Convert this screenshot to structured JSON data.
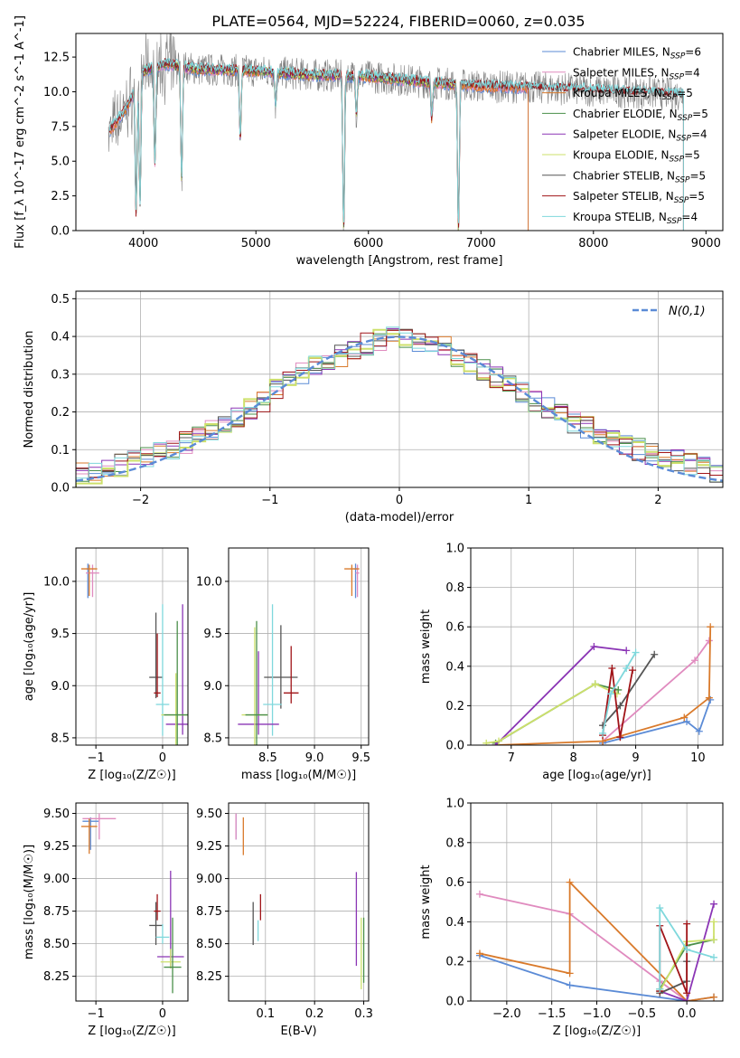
{
  "figure_title": "PLATE=0564, MJD=52224, FIBERID=0060, z=0.035",
  "colors": {
    "chabrier_miles": "#5b8bd6",
    "salpeter_miles": "#e08bbf",
    "kroupa_miles": "#d97a2b",
    "chabrier_elodie": "#4a8f4a",
    "salpeter_elodie": "#8b35b5",
    "kroupa_elodie": "#cde06b",
    "chabrier_stelib": "#555555",
    "salpeter_stelib": "#a01418",
    "kroupa_stelib": "#7fd8dc",
    "data": "#808080",
    "normal": "#5b8bd6",
    "grid": "#b0b0b0"
  },
  "chart_data": [
    {
      "id": "spectrum",
      "type": "line",
      "title": "PLATE=0564, MJD=52224, FIBERID=0060, z=0.035",
      "xlabel": "wavelength [Angstrom, rest frame]",
      "ylabel": "Flux [f_λ 10^-17 erg cm^-2 s^-1 A^-1]",
      "xlim": [
        3400,
        9150
      ],
      "ylim": [
        0,
        14.2
      ],
      "xticks": [
        4000,
        5000,
        6000,
        7000,
        8000,
        9000
      ],
      "yticks": [
        0.0,
        2.5,
        5.0,
        7.5,
        10.0,
        12.5
      ],
      "grid": false,
      "legend_position": "top-right",
      "legend": [
        {
          "base": "Chabrier MILES, N",
          "n": "6",
          "key": "chabrier_miles"
        },
        {
          "base": "Salpeter MILES, N",
          "n": "4",
          "key": "salpeter_miles"
        },
        {
          "base": "Kroupa MILES, N",
          "n": "5",
          "key": "kroupa_miles"
        },
        {
          "base": "Chabrier ELODIE, N",
          "n": "5",
          "key": "chabrier_elodie"
        },
        {
          "base": "Salpeter ELODIE, N",
          "n": "4",
          "key": "salpeter_elodie"
        },
        {
          "base": "Kroupa ELODIE, N",
          "n": "5",
          "key": "kroupa_elodie"
        },
        {
          "base": "Chabrier STELIB, N",
          "n": "5",
          "key": "chabrier_stelib"
        },
        {
          "base": "Salpeter STELIB, N",
          "n": "5",
          "key": "salpeter_stelib"
        },
        {
          "base": "Kroupa STELIB, N",
          "n": "4",
          "key": "kroupa_stelib"
        }
      ],
      "legend_subscript": "SSP",
      "continuum": {
        "x": [
          3700,
          3850,
          4000,
          4200,
          4500,
          5000,
          5500,
          6000,
          6500,
          7000,
          7500,
          8000,
          8500,
          8800
        ],
        "y": [
          7.2,
          8.8,
          11.5,
          12.0,
          11.6,
          11.5,
          11.2,
          11.1,
          10.7,
          10.4,
          10.3,
          10.1,
          9.9,
          9.8
        ]
      },
      "model_ranges": {
        "chabrier_miles": [
          3700,
          7420
        ],
        "salpeter_miles": [
          3700,
          7420
        ],
        "kroupa_miles": [
          3700,
          7420
        ],
        "chabrier_elodie": [
          3900,
          6800
        ],
        "salpeter_elodie": [
          3900,
          6800
        ],
        "kroupa_elodie": [
          3900,
          6800
        ],
        "chabrier_stelib": [
          3700,
          8800
        ],
        "salpeter_stelib": [
          3700,
          8800
        ],
        "kroupa_stelib": [
          3700,
          8800
        ]
      },
      "dips": [
        {
          "x": 3935,
          "y": 1.2
        },
        {
          "x": 3970,
          "y": 2.0
        },
        {
          "x": 4102,
          "y": 4.8
        },
        {
          "x": 4340,
          "y": 3.6
        },
        {
          "x": 4861,
          "y": 6.6
        },
        {
          "x": 5175,
          "y": 9.0
        },
        {
          "x": 5780,
          "y": 0.0
        },
        {
          "x": 5893,
          "y": 8.3
        },
        {
          "x": 6563,
          "y": 8.0
        },
        {
          "x": 6800,
          "y": 0.0
        }
      ]
    },
    {
      "id": "residuals",
      "type": "bar",
      "xlabel": "(data-model)/error",
      "ylabel": "Normed distribution",
      "xlim": [
        -2.5,
        2.5
      ],
      "ylim": [
        0,
        0.52
      ],
      "xticks": [
        -2,
        -1,
        0,
        1,
        2
      ],
      "yticks": [
        0.0,
        0.1,
        0.2,
        0.3,
        0.4,
        0.5
      ],
      "grid": true,
      "legend_position": "top-right",
      "legend_label": "N(0,1)",
      "bin_width": 0.1,
      "hist_centers": [
        -2.45,
        -2.35,
        -2.25,
        -2.15,
        -2.05,
        -1.95,
        -1.85,
        -1.75,
        -1.65,
        -1.55,
        -1.45,
        -1.35,
        -1.25,
        -1.15,
        -1.05,
        -0.95,
        -0.85,
        -0.75,
        -0.65,
        -0.55,
        -0.45,
        -0.35,
        -0.25,
        -0.15,
        -0.05,
        0.05,
        0.15,
        0.25,
        0.35,
        0.45,
        0.55,
        0.65,
        0.75,
        0.85,
        0.95,
        1.05,
        1.15,
        1.25,
        1.35,
        1.45,
        1.55,
        1.65,
        1.75,
        1.85,
        1.95,
        2.05,
        2.15,
        2.25,
        2.35,
        2.45
      ],
      "hist_values": [
        0.04,
        0.04,
        0.05,
        0.06,
        0.07,
        0.08,
        0.09,
        0.1,
        0.12,
        0.14,
        0.15,
        0.17,
        0.19,
        0.21,
        0.23,
        0.26,
        0.28,
        0.3,
        0.32,
        0.33,
        0.35,
        0.37,
        0.38,
        0.39,
        0.4,
        0.4,
        0.39,
        0.38,
        0.37,
        0.35,
        0.33,
        0.31,
        0.29,
        0.27,
        0.25,
        0.23,
        0.21,
        0.19,
        0.17,
        0.16,
        0.14,
        0.13,
        0.11,
        0.1,
        0.09,
        0.08,
        0.07,
        0.06,
        0.05,
        0.04
      ],
      "normal_curve": {
        "mean": 0,
        "sigma": 1
      }
    },
    {
      "id": "age_vs_Z",
      "type": "scatter",
      "xlabel": "Z [log10(Z/Z☉)]",
      "ylabel": "age [log10(age/yr)]",
      "xlim": [
        -1.3,
        0.38
      ],
      "ylim": [
        8.43,
        10.32
      ],
      "xticks": [
        -1,
        0
      ],
      "yticks": [
        8.5,
        9.0,
        9.5,
        10.0
      ],
      "grid": true,
      "points": [
        {
          "key": "chabrier_miles",
          "x": -1.12,
          "y": 10.12,
          "xerr": 0.02,
          "yerr": [
            0.28,
            0.05
          ]
        },
        {
          "key": "salpeter_miles",
          "x": -1.05,
          "y": 10.08,
          "xerr": 0.1,
          "yerr": [
            0.23,
            0.08
          ]
        },
        {
          "key": "kroupa_miles",
          "x": -1.1,
          "y": 10.12,
          "xerr": 0.12,
          "yerr": [
            0.26,
            0.04
          ]
        },
        {
          "key": "chabrier_stelib",
          "x": -0.1,
          "y": 9.08,
          "xerr": 0.1,
          "yerr": [
            0.2,
            0.62
          ]
        },
        {
          "key": "salpeter_stelib",
          "x": -0.08,
          "y": 8.93,
          "xerr": 0.05,
          "yerr": [
            0.04,
            0.57
          ]
        },
        {
          "key": "kroupa_stelib",
          "x": 0.0,
          "y": 8.82,
          "xerr": 0.1,
          "yerr": [
            0.3,
            0.96
          ]
        },
        {
          "key": "salpeter_elodie",
          "x": 0.3,
          "y": 8.63,
          "xerr": 0.25,
          "yerr": [
            0.1,
            1.15
          ]
        },
        {
          "key": "kroupa_elodie",
          "x": 0.2,
          "y": 8.72,
          "xerr": 0.22,
          "yerr": [
            0.3,
            0.4
          ]
        },
        {
          "key": "chabrier_elodie",
          "x": 0.22,
          "y": 8.72,
          "xerr": 0.2,
          "yerr": [
            0.3,
            0.9
          ]
        }
      ]
    },
    {
      "id": "age_vs_mass",
      "type": "scatter",
      "xlabel": "mass [log10(M/M☉)]",
      "ylabel": "",
      "xlim": [
        8.08,
        9.58
      ],
      "ylim": [
        8.43,
        10.32
      ],
      "xticks": [
        8.5,
        9.0,
        9.5
      ],
      "yticks": [
        8.5,
        9.0,
        9.5,
        10.0
      ],
      "grid": true,
      "points": [
        {
          "key": "chabrier_miles",
          "x": 9.44,
          "y": 10.12,
          "xerr": 0.02,
          "yerr": [
            0.28,
            0.05
          ]
        },
        {
          "key": "salpeter_miles",
          "x": 9.46,
          "y": 10.08,
          "xerr": 0.02,
          "yerr": [
            0.23,
            0.08
          ]
        },
        {
          "key": "kroupa_miles",
          "x": 9.4,
          "y": 10.12,
          "xerr": 0.08,
          "yerr": [
            0.26,
            0.04
          ]
        },
        {
          "key": "chabrier_stelib",
          "x": 8.64,
          "y": 9.08,
          "xerr": 0.18,
          "yerr": [
            0.3,
            0.5
          ]
        },
        {
          "key": "salpeter_stelib",
          "x": 8.75,
          "y": 8.93,
          "xerr": 0.08,
          "yerr": [
            0.1,
            0.45
          ]
        },
        {
          "key": "kroupa_stelib",
          "x": 8.55,
          "y": 8.82,
          "xerr": 0.1,
          "yerr": [
            0.3,
            0.96
          ]
        },
        {
          "key": "salpeter_elodie",
          "x": 8.4,
          "y": 8.63,
          "xerr": 0.22,
          "yerr": [
            0.1,
            0.7
          ]
        },
        {
          "key": "kroupa_elodie",
          "x": 8.36,
          "y": 8.72,
          "xerr": 0.14,
          "yerr": [
            0.3,
            0.84
          ]
        },
        {
          "key": "chabrier_elodie",
          "x": 8.38,
          "y": 8.72,
          "xerr": 0.12,
          "yerr": [
            0.3,
            0.9
          ]
        }
      ]
    },
    {
      "id": "weight_vs_age",
      "type": "line",
      "xlabel": "age [log10(age/yr)]",
      "ylabel": "mass weight",
      "xlim": [
        6.35,
        10.4
      ],
      "ylim": [
        0,
        1.0
      ],
      "xticks": [
        7,
        8,
        9,
        10
      ],
      "yticks": [
        0.0,
        0.2,
        0.4,
        0.6,
        0.8,
        1.0
      ],
      "grid": true,
      "series": [
        {
          "key": "chabrier_miles",
          "x": [
            8.47,
            9.82,
            10.02,
            10.2
          ],
          "y": [
            0.01,
            0.12,
            0.07,
            0.23
          ]
        },
        {
          "key": "salpeter_miles",
          "x": [
            8.47,
            9.95,
            10.18
          ],
          "y": [
            0.02,
            0.43,
            0.53
          ]
        },
        {
          "key": "kroupa_miles",
          "x": [
            6.75,
            8.47,
            9.78,
            10.18,
            10.2
          ],
          "y": [
            0.0,
            0.02,
            0.14,
            0.24,
            0.6
          ]
        },
        {
          "key": "chabrier_elodie",
          "x": [
            6.75,
            8.35,
            8.72
          ],
          "y": [
            0.01,
            0.31,
            0.28
          ]
        },
        {
          "key": "salpeter_elodie",
          "x": [
            6.75,
            8.33,
            8.85
          ],
          "y": [
            0.0,
            0.5,
            0.48
          ]
        },
        {
          "key": "kroupa_elodie",
          "x": [
            6.6,
            6.8,
            8.35,
            8.7
          ],
          "y": [
            0.01,
            0.02,
            0.31,
            0.26
          ]
        },
        {
          "key": "chabrier_stelib",
          "x": [
            8.47,
            8.75,
            9.3
          ],
          "y": [
            0.1,
            0.2,
            0.46
          ]
        },
        {
          "key": "salpeter_stelib",
          "x": [
            8.47,
            8.62,
            8.75,
            8.95
          ],
          "y": [
            0.05,
            0.39,
            0.04,
            0.38
          ]
        },
        {
          "key": "kroupa_stelib",
          "x": [
            8.47,
            8.6,
            8.85,
            9.0
          ],
          "y": [
            0.06,
            0.26,
            0.39,
            0.47
          ]
        }
      ]
    },
    {
      "id": "mass_vs_Z",
      "type": "scatter",
      "xlabel": "Z [log10(Z/Z☉)]",
      "ylabel": "mass [log10(M/M☉)]",
      "xlim": [
        -1.3,
        0.38
      ],
      "ylim": [
        8.06,
        9.58
      ],
      "xticks": [
        -1,
        0
      ],
      "yticks": [
        8.25,
        8.5,
        8.75,
        9.0,
        9.25,
        9.5
      ],
      "grid": true,
      "points": [
        {
          "key": "chabrier_miles",
          "x": -1.08,
          "y": 9.44,
          "xerr": 0.12,
          "yerr": [
            0.22,
            0.03
          ]
        },
        {
          "key": "salpeter_miles",
          "x": -0.95,
          "y": 9.46,
          "xerr": 0.25,
          "yerr": [
            0.16,
            0.04
          ]
        },
        {
          "key": "kroupa_miles",
          "x": -1.1,
          "y": 9.4,
          "xerr": 0.12,
          "yerr": [
            0.21,
            0.06
          ]
        },
        {
          "key": "chabrier_stelib",
          "x": -0.1,
          "y": 8.64,
          "xerr": 0.1,
          "yerr": [
            0.15,
            0.18
          ]
        },
        {
          "key": "salpeter_stelib",
          "x": -0.08,
          "y": 8.75,
          "xerr": 0.05,
          "yerr": [
            0.07,
            0.13
          ]
        },
        {
          "key": "kroupa_stelib",
          "x": 0.0,
          "y": 8.55,
          "xerr": 0.1,
          "yerr": [
            0.05,
            0.1
          ]
        },
        {
          "key": "salpeter_elodie",
          "x": 0.12,
          "y": 8.4,
          "xerr": 0.2,
          "yerr": [
            0.09,
            0.66
          ]
        },
        {
          "key": "kroupa_elodie",
          "x": 0.12,
          "y": 8.36,
          "xerr": 0.15,
          "yerr": [
            0.05,
            0.1
          ]
        },
        {
          "key": "chabrier_elodie",
          "x": 0.15,
          "y": 8.32,
          "xerr": 0.13,
          "yerr": [
            0.2,
            0.38
          ]
        }
      ]
    },
    {
      "id": "mass_vs_ebv",
      "type": "scatter",
      "xlabel": "E(B-V)",
      "ylabel": "",
      "xlim": [
        0.025,
        0.31
      ],
      "ylim": [
        8.06,
        9.58
      ],
      "xticks": [
        0.1,
        0.2,
        0.3
      ],
      "yticks": [
        8.25,
        8.5,
        8.75,
        9.0,
        9.25,
        9.5
      ],
      "grid": true,
      "points": [
        {
          "key": "chabrier_miles",
          "x": 0.04,
          "y": 9.44,
          "xerr": 0.0,
          "yerr": [
            0.14,
            0.06
          ]
        },
        {
          "key": "salpeter_miles",
          "x": 0.04,
          "y": 9.4,
          "xerr": 0.0,
          "yerr": [
            0.1,
            0.1
          ]
        },
        {
          "key": "kroupa_miles",
          "x": 0.055,
          "y": 9.35,
          "xerr": 0.0,
          "yerr": [
            0.17,
            0.12
          ]
        },
        {
          "key": "chabrier_stelib",
          "x": 0.075,
          "y": 8.64,
          "xerr": 0.0,
          "yerr": [
            0.15,
            0.18
          ]
        },
        {
          "key": "salpeter_stelib",
          "x": 0.09,
          "y": 8.75,
          "xerr": 0.0,
          "yerr": [
            0.07,
            0.13
          ]
        },
        {
          "key": "kroupa_stelib",
          "x": 0.085,
          "y": 8.6,
          "xerr": 0.0,
          "yerr": [
            0.08,
            0.08
          ]
        },
        {
          "key": "salpeter_elodie",
          "x": 0.285,
          "y": 8.7,
          "xerr": 0.0,
          "yerr": [
            0.37,
            0.35
          ]
        },
        {
          "key": "kroupa_elodie",
          "x": 0.295,
          "y": 8.45,
          "xerr": 0.0,
          "yerr": [
            0.3,
            0.25
          ]
        },
        {
          "key": "chabrier_elodie",
          "x": 0.3,
          "y": 8.5,
          "xerr": 0.0,
          "yerr": [
            0.3,
            0.2
          ]
        }
      ]
    },
    {
      "id": "weight_vs_Z",
      "type": "line",
      "xlabel": "Z [log10(Z/Z☉)]",
      "ylabel": "mass weight",
      "xlim": [
        -2.4,
        0.4
      ],
      "ylim": [
        0,
        1.0
      ],
      "xticks": [
        -2.0,
        -1.5,
        -1.0,
        -0.5,
        0.0
      ],
      "yticks": [
        0.0,
        0.2,
        0.4,
        0.6,
        0.8,
        1.0
      ],
      "grid": true,
      "series": [
        {
          "key": "chabrier_miles",
          "x": [
            -2.3,
            -1.3,
            0.0,
            0.3
          ],
          "y": [
            0.23,
            0.08,
            0.0,
            0.02
          ]
        },
        {
          "key": "salpeter_miles",
          "x": [
            -2.3,
            -1.3,
            -0.3,
            0.0
          ],
          "y": [
            0.54,
            0.44,
            0.1,
            0.0
          ]
        },
        {
          "key": "kroupa_miles",
          "x": [
            -2.3,
            -1.3,
            -1.3,
            0.0,
            0.3
          ],
          "y": [
            0.24,
            0.14,
            0.6,
            0.0,
            0.02
          ]
        },
        {
          "key": "chabrier_elodie",
          "x": [
            -0.3,
            0.0,
            0.3
          ],
          "y": [
            0.06,
            0.28,
            0.31
          ]
        },
        {
          "key": "salpeter_elodie",
          "x": [
            -0.3,
            0.0,
            0.3
          ],
          "y": [
            0.05,
            0.0,
            0.49
          ]
        },
        {
          "key": "kroupa_elodie",
          "x": [
            -0.3,
            0.0,
            0.3,
            0.3
          ],
          "y": [
            0.05,
            0.3,
            0.31,
            0.4
          ]
        },
        {
          "key": "chabrier_stelib",
          "x": [
            -0.3,
            0.0,
            0.0
          ],
          "y": [
            0.04,
            0.1,
            0.2
          ]
        },
        {
          "key": "salpeter_stelib",
          "x": [
            -0.3,
            -0.3,
            0.0,
            0.0
          ],
          "y": [
            0.05,
            0.38,
            0.04,
            0.39
          ]
        },
        {
          "key": "kroupa_stelib",
          "x": [
            -0.3,
            -0.3,
            0.0,
            0.3
          ],
          "y": [
            0.06,
            0.47,
            0.26,
            0.22
          ]
        }
      ]
    }
  ]
}
